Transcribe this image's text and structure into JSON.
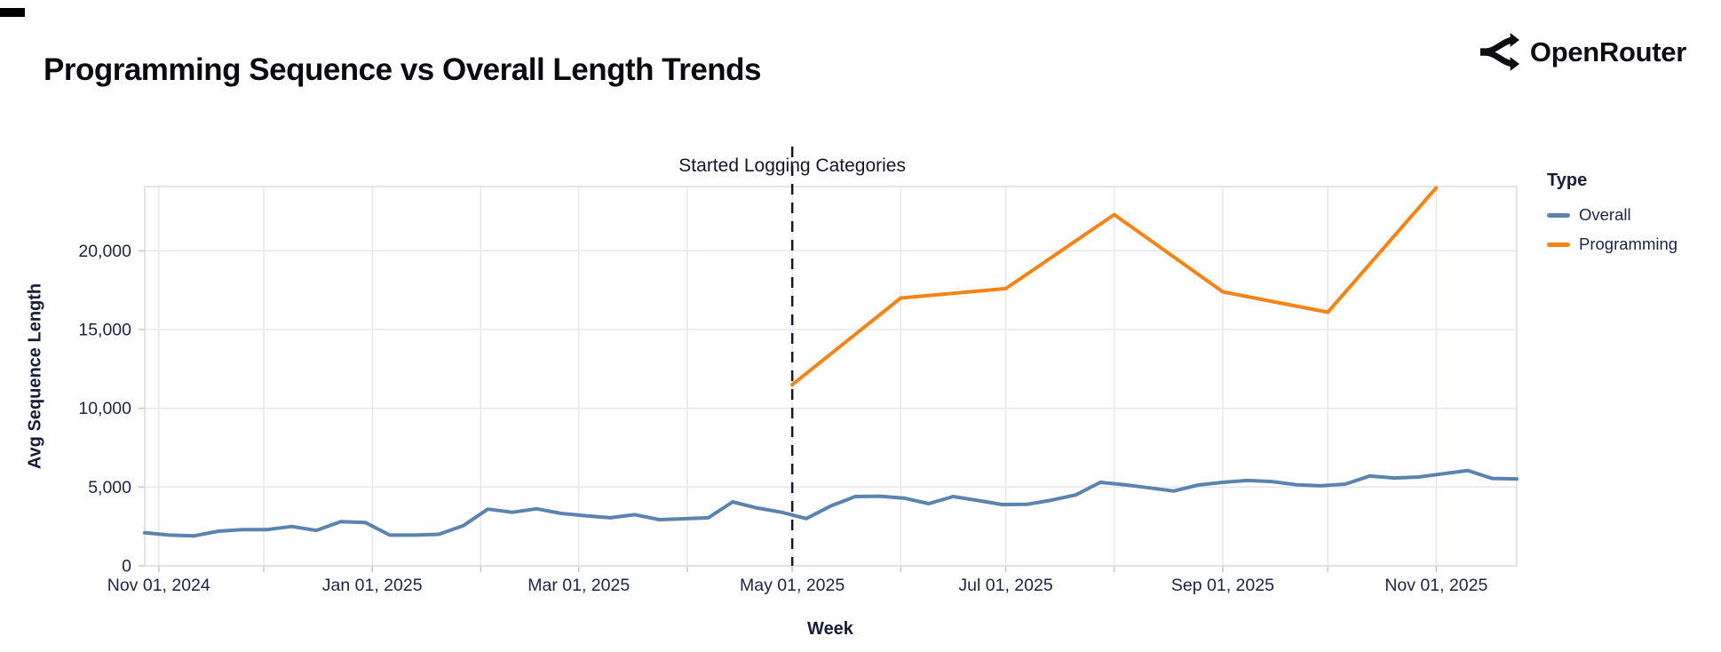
{
  "page": {
    "title": "Programming Sequence vs Overall Length Trends"
  },
  "logo": {
    "text": "OpenRouter",
    "icon": "openrouter-branch-arrows"
  },
  "colors": {
    "overall": "#5b83b0",
    "programming": "#f58414",
    "grid": "#e8e8f0",
    "border": "#dcdce4",
    "tick": "#c9c9d4",
    "annotation_line": "#15152a",
    "text": "#1b2440"
  },
  "chart_data": {
    "type": "line",
    "title": "Programming Sequence vs Overall Length Trends",
    "xlabel": "Week",
    "ylabel": "Avg Sequence Length",
    "ylim": [
      0,
      24080
    ],
    "x_range": [
      "2024-10-28",
      "2025-11-24"
    ],
    "grid": true,
    "legend": {
      "title": "Type",
      "position": "right"
    },
    "y_ticks": [
      0,
      5000,
      10000,
      15000,
      20000
    ],
    "x_gridlines": [
      "2024-11-01",
      "2024-12-01",
      "2025-01-01",
      "2025-02-01",
      "2025-03-01",
      "2025-04-01",
      "2025-05-01",
      "2025-06-01",
      "2025-07-01",
      "2025-08-01",
      "2025-09-01",
      "2025-10-01",
      "2025-11-01"
    ],
    "x_ticks": [
      {
        "date": "2024-11-01",
        "label": "Nov 01, 2024"
      },
      {
        "date": "2025-01-01",
        "label": "Jan 01, 2025"
      },
      {
        "date": "2025-03-01",
        "label": "Mar 01, 2025"
      },
      {
        "date": "2025-05-01",
        "label": "May 01, 2025"
      },
      {
        "date": "2025-07-01",
        "label": "Jul 01, 2025"
      },
      {
        "date": "2025-09-01",
        "label": "Sep 01, 2025"
      },
      {
        "date": "2025-11-01",
        "label": "Nov 01, 2025"
      }
    ],
    "annotation": {
      "label": "Started Logging Categories",
      "date": "2025-05-01"
    },
    "series": [
      {
        "name": "Overall",
        "color": "#5b83b0",
        "points": [
          [
            "2024-10-28",
            2100
          ],
          [
            "2024-11-04",
            1950
          ],
          [
            "2024-11-11",
            1900
          ],
          [
            "2024-11-18",
            2200
          ],
          [
            "2024-11-25",
            2300
          ],
          [
            "2024-12-02",
            2300
          ],
          [
            "2024-12-09",
            2500
          ],
          [
            "2024-12-16",
            2250
          ],
          [
            "2024-12-23",
            2800
          ],
          [
            "2024-12-30",
            2750
          ],
          [
            "2025-01-06",
            1950
          ],
          [
            "2025-01-13",
            1950
          ],
          [
            "2025-01-20",
            2000
          ],
          [
            "2025-01-27",
            2550
          ],
          [
            "2025-02-03",
            3600
          ],
          [
            "2025-02-10",
            3400
          ],
          [
            "2025-02-17",
            3620
          ],
          [
            "2025-02-24",
            3330
          ],
          [
            "2025-03-03",
            3180
          ],
          [
            "2025-03-10",
            3050
          ],
          [
            "2025-03-17",
            3250
          ],
          [
            "2025-03-24",
            2930
          ],
          [
            "2025-03-31",
            2990
          ],
          [
            "2025-04-07",
            3050
          ],
          [
            "2025-04-14",
            4060
          ],
          [
            "2025-04-21",
            3670
          ],
          [
            "2025-04-28",
            3400
          ],
          [
            "2025-05-05",
            3000
          ],
          [
            "2025-05-12",
            3800
          ],
          [
            "2025-05-19",
            4400
          ],
          [
            "2025-05-26",
            4420
          ],
          [
            "2025-06-02",
            4300
          ],
          [
            "2025-06-09",
            3950
          ],
          [
            "2025-06-16",
            4400
          ],
          [
            "2025-06-23",
            4150
          ],
          [
            "2025-06-30",
            3890
          ],
          [
            "2025-07-07",
            3900
          ],
          [
            "2025-07-14",
            4170
          ],
          [
            "2025-07-21",
            4500
          ],
          [
            "2025-07-28",
            5300
          ],
          [
            "2025-08-04",
            5150
          ],
          [
            "2025-08-11",
            4950
          ],
          [
            "2025-08-18",
            4750
          ],
          [
            "2025-08-25",
            5130
          ],
          [
            "2025-09-01",
            5300
          ],
          [
            "2025-09-08",
            5420
          ],
          [
            "2025-09-15",
            5350
          ],
          [
            "2025-09-22",
            5150
          ],
          [
            "2025-09-29",
            5080
          ],
          [
            "2025-10-06",
            5190
          ],
          [
            "2025-10-13",
            5700
          ],
          [
            "2025-10-20",
            5580
          ],
          [
            "2025-10-27",
            5640
          ],
          [
            "2025-11-03",
            5850
          ],
          [
            "2025-11-10",
            6050
          ],
          [
            "2025-11-17",
            5550
          ],
          [
            "2025-11-24",
            5520
          ]
        ]
      },
      {
        "name": "Programming",
        "color": "#f58414",
        "points": [
          [
            "2025-05-01",
            11500
          ],
          [
            "2025-06-01",
            17000
          ],
          [
            "2025-07-01",
            17600
          ],
          [
            "2025-08-01",
            22300
          ],
          [
            "2025-09-01",
            17400
          ],
          [
            "2025-10-01",
            16100
          ],
          [
            "2025-11-01",
            24000
          ]
        ]
      }
    ]
  }
}
